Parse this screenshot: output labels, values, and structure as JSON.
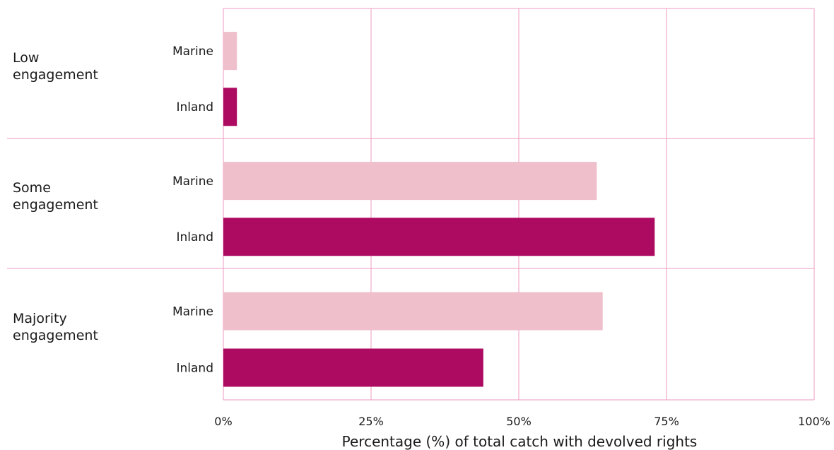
{
  "chart_data": {
    "type": "bar",
    "orientation": "horizontal",
    "xlabel": "Percentage (%) of total catch with devolved rights",
    "xlim": [
      0,
      100
    ],
    "x_ticks": [
      {
        "value": 0,
        "label": "0%"
      },
      {
        "value": 25,
        "label": "25%"
      },
      {
        "value": 50,
        "label": "50%"
      },
      {
        "value": 75,
        "label": "75%"
      },
      {
        "value": 100,
        "label": "100%"
      }
    ],
    "grid": true,
    "groups": [
      {
        "label_lines": [
          "Low",
          "engagement"
        ],
        "bars": [
          {
            "label": "Marine",
            "value": 2.3,
            "color": "#efbfcc"
          },
          {
            "label": "Inland",
            "value": 2.3,
            "color": "#ad0a62"
          }
        ]
      },
      {
        "label_lines": [
          "Some",
          "engagement"
        ],
        "bars": [
          {
            "label": "Marine",
            "value": 63.2,
            "color": "#efbfcc"
          },
          {
            "label": "Inland",
            "value": 73.0,
            "color": "#ad0a62"
          }
        ]
      },
      {
        "label_lines": [
          "Majority",
          "engagement"
        ],
        "bars": [
          {
            "label": "Marine",
            "value": 64.2,
            "color": "#efbfcc"
          },
          {
            "label": "Inland",
            "value": 44.0,
            "color": "#ad0a62"
          }
        ]
      }
    ],
    "colors": {
      "grid": "#ec9bc0",
      "marine": "#efbfcc",
      "inland": "#ad0a62"
    }
  }
}
